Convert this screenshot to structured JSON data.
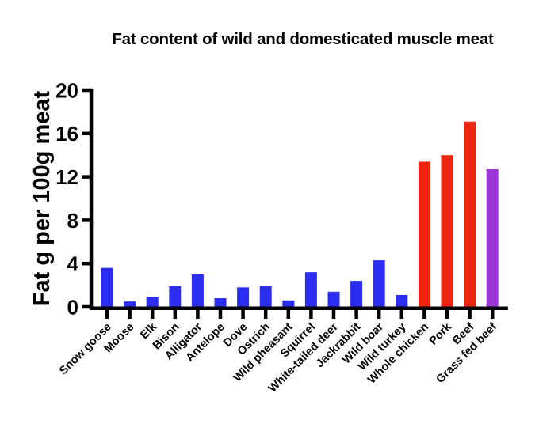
{
  "chart_data": {
    "type": "bar",
    "title": "Fat content of wild and domesticated muscle meat",
    "ylabel": "Fat g per 100g meat",
    "xlabel": "",
    "ylim": [
      0,
      20
    ],
    "yticks": [
      0,
      4,
      8,
      12,
      16,
      20
    ],
    "grid": false,
    "legend": "none",
    "group_colors": {
      "wild": "#2B2DF0",
      "domesticated": "#EE2511",
      "grass_fed": "#9C36D6"
    },
    "categories": [
      "Snow goose",
      "Moose",
      "Elk",
      "Bison",
      "Alligator",
      "Antelope",
      "Dove",
      "Ostrich",
      "Wild pheasant",
      "Squirrel",
      "White-tailed deer",
      "Jackrabbit",
      "Wild boar",
      "Wild turkey",
      "Whole chicken",
      "Pork",
      "Beef",
      "Grass fed beef"
    ],
    "values": [
      3.6,
      0.5,
      0.9,
      1.9,
      3.0,
      0.8,
      1.8,
      1.9,
      0.6,
      3.2,
      1.4,
      2.4,
      4.3,
      1.1,
      13.4,
      14.0,
      17.1,
      12.7
    ],
    "groups": [
      "wild",
      "wild",
      "wild",
      "wild",
      "wild",
      "wild",
      "wild",
      "wild",
      "wild",
      "wild",
      "wild",
      "wild",
      "wild",
      "wild",
      "domesticated",
      "domesticated",
      "domesticated",
      "grass_fed"
    ]
  }
}
